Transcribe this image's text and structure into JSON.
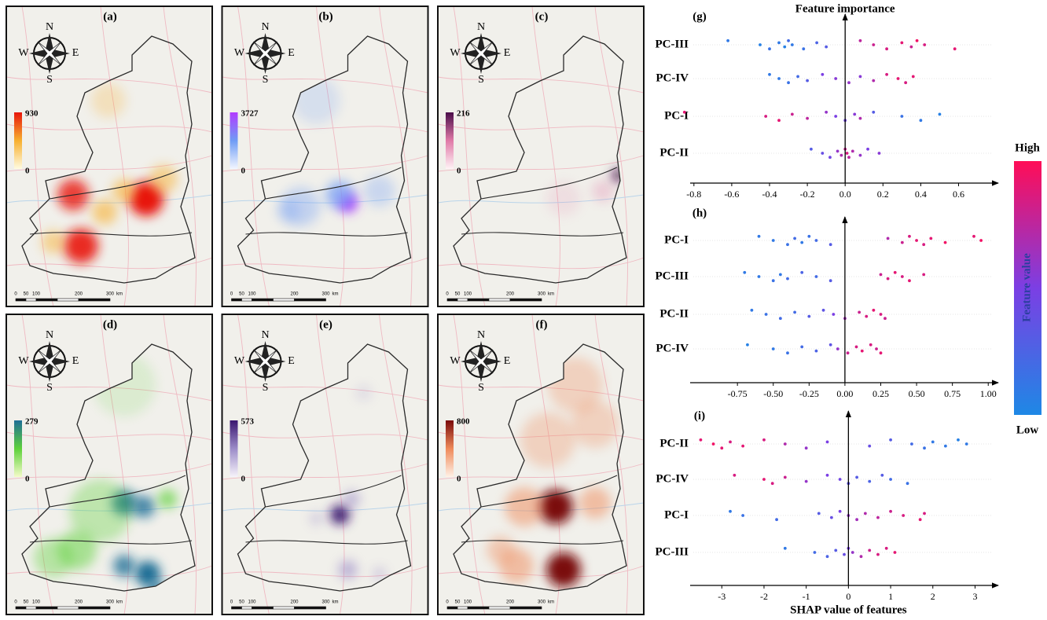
{
  "maps": [
    {
      "label": "(a)",
      "legend_max": 930,
      "legend_min": 0,
      "colors": [
        "#fffbe0",
        "#f7b030",
        "#e8150a"
      ]
    },
    {
      "label": "(b)",
      "legend_max": 3727,
      "legend_min": 0,
      "colors": [
        "#f2f6ff",
        "#6f9cf5",
        "#b23cff"
      ]
    },
    {
      "label": "(c)",
      "legend_max": 216,
      "legend_min": 0,
      "colors": [
        "#fff3f6",
        "#e07aa8",
        "#4a0d4a"
      ]
    },
    {
      "label": "(d)",
      "legend_max": 279,
      "legend_min": 0,
      "colors": [
        "#f4fbc8",
        "#5ed13a",
        "#1e6e96"
      ]
    },
    {
      "label": "(e)",
      "legend_max": 573,
      "legend_min": 0,
      "colors": [
        "#f6f3fa",
        "#9c8cc8",
        "#3a1670"
      ]
    },
    {
      "label": "(f)",
      "legend_max": 800,
      "legend_min": 0,
      "colors": [
        "#fff1e6",
        "#ef8a5a",
        "#7a0a0a"
      ]
    }
  ],
  "compass": {
    "n": "N",
    "e": "E",
    "s": "S",
    "w": "W"
  },
  "scale_labels": [
    "0",
    "50",
    "100",
    "200",
    "300",
    "km"
  ],
  "colorbar": {
    "high": "High",
    "low": "Low",
    "label": "Feature value",
    "colors": [
      "#ff0d57",
      "#7b3fe4",
      "#1e88e5"
    ]
  },
  "chart_data": [
    {
      "type": "beeswarm",
      "label": "(g)",
      "title": "Feature importance",
      "xlim": [
        -0.82,
        0.81
      ],
      "xticks": [
        -0.8,
        -0.6,
        -0.4,
        -0.2,
        {
          "value": 0,
          "label": "0.0"
        },
        0.2,
        0.4,
        0.6
      ],
      "series": [
        {
          "name": "PC-III",
          "values": [
            -0.62,
            -0.45,
            -0.4,
            -0.35,
            -0.32,
            -0.3,
            -0.28,
            -0.22,
            -0.15,
            -0.1,
            0.08,
            0.15,
            0.22,
            0.3,
            0.35,
            0.38,
            0.42,
            0.58
          ],
          "feature_values": [
            0.1,
            0.05,
            0.15,
            0.1,
            0.05,
            0.2,
            0.1,
            0.15,
            0.25,
            0.3,
            0.75,
            0.8,
            0.85,
            0.9,
            0.8,
            0.95,
            0.85,
            0.9
          ]
        },
        {
          "name": "PC-IV",
          "values": [
            -0.4,
            -0.35,
            -0.3,
            -0.25,
            -0.2,
            -0.12,
            -0.05,
            0.02,
            0.08,
            0.15,
            0.22,
            0.28,
            0.32,
            0.36
          ],
          "feature_values": [
            0.1,
            0.1,
            0.15,
            0.2,
            0.3,
            0.5,
            0.55,
            0.6,
            0.55,
            0.7,
            0.85,
            0.9,
            0.85,
            0.9
          ]
        },
        {
          "name": "PC-I",
          "values": [
            -0.85,
            -0.42,
            -0.35,
            -0.28,
            -0.2,
            -0.1,
            -0.05,
            0.0,
            0.05,
            0.08,
            0.15,
            0.3,
            0.4,
            0.5
          ],
          "feature_values": [
            0.9,
            0.85,
            0.9,
            0.8,
            0.75,
            0.6,
            0.5,
            0.45,
            0.55,
            0.7,
            0.3,
            0.15,
            0.1,
            0.05
          ]
        },
        {
          "name": "PC-II",
          "values": [
            -0.18,
            -0.12,
            -0.08,
            -0.04,
            -0.02,
            0,
            0.01,
            0.02,
            0.04,
            0.08,
            0.12,
            0.18
          ],
          "feature_values": [
            0.3,
            0.4,
            0.45,
            0.6,
            0.7,
            0.8,
            0.85,
            0.75,
            0.7,
            0.6,
            0.5,
            0.55
          ]
        }
      ]
    },
    {
      "type": "beeswarm",
      "label": "(h)",
      "xlim": [
        -1.08,
        1.07
      ],
      "xticks": [
        -0.75,
        {
          "value": -0.5,
          "label": "-0.50"
        },
        -0.25,
        {
          "value": 0,
          "label": "0.00"
        },
        0.25,
        {
          "value": 0.5,
          "label": "0.50"
        },
        0.75,
        {
          "value": 1,
          "label": "1.00"
        }
      ],
      "series": [
        {
          "name": "PC-I",
          "values": [
            -0.6,
            -0.5,
            -0.4,
            -0.35,
            -0.3,
            -0.25,
            -0.2,
            -0.1,
            0.3,
            0.4,
            0.45,
            0.5,
            0.55,
            0.6,
            0.7,
            0.9,
            0.95
          ],
          "feature_values": [
            0.1,
            0.1,
            0.15,
            0.2,
            0.1,
            0.15,
            0.2,
            0.3,
            0.7,
            0.8,
            0.85,
            0.9,
            0.85,
            0.9,
            0.95,
            0.9,
            0.95
          ]
        },
        {
          "name": "PC-III",
          "values": [
            -0.7,
            -0.6,
            -0.5,
            -0.45,
            -0.4,
            -0.3,
            -0.2,
            -0.1,
            0.25,
            0.3,
            0.35,
            0.4,
            0.45,
            0.55
          ],
          "feature_values": [
            0.1,
            0.1,
            0.15,
            0.1,
            0.2,
            0.25,
            0.2,
            0.3,
            0.8,
            0.85,
            0.9,
            0.85,
            0.9,
            0.85
          ]
        },
        {
          "name": "PC-II",
          "values": [
            -0.65,
            -0.55,
            -0.45,
            -0.35,
            -0.25,
            -0.15,
            -0.08,
            0,
            0.1,
            0.15,
            0.2,
            0.25,
            0.28
          ],
          "feature_values": [
            0.1,
            0.15,
            0.2,
            0.2,
            0.3,
            0.35,
            0.5,
            0.65,
            0.8,
            0.85,
            0.9,
            0.85,
            0.8
          ]
        },
        {
          "name": "PC-IV",
          "values": [
            -0.68,
            -0.5,
            -0.4,
            -0.3,
            -0.2,
            -0.1,
            -0.05,
            0.02,
            0.08,
            0.12,
            0.18,
            0.22,
            0.25
          ],
          "feature_values": [
            0.05,
            0.1,
            0.15,
            0.2,
            0.25,
            0.35,
            0.6,
            0.8,
            0.85,
            0.9,
            0.85,
            0.8,
            0.9
          ]
        }
      ]
    },
    {
      "type": "beeswarm",
      "label": "(i)",
      "x_label": "SHAP value of features",
      "xlim": [
        -3.75,
        3.55
      ],
      "xticks": [
        -3,
        -2,
        -1,
        0,
        1,
        2,
        3
      ],
      "series": [
        {
          "name": "PC-II",
          "values": [
            -3.5,
            -3.2,
            -3,
            -2.8,
            -2.5,
            -2,
            -1.5,
            -1,
            -0.5,
            0.5,
            1,
            1.5,
            1.8,
            2,
            2.3,
            2.6,
            2.8
          ],
          "feature_values": [
            0.9,
            0.95,
            0.9,
            0.85,
            0.9,
            0.85,
            0.7,
            0.6,
            0.5,
            0.4,
            0.3,
            0.2,
            0.15,
            0.1,
            0.1,
            0.05,
            0.1
          ]
        },
        {
          "name": "PC-IV",
          "values": [
            -2.7,
            -2,
            -1.8,
            -1.5,
            -1,
            -0.5,
            -0.2,
            0,
            0.2,
            0.5,
            0.8,
            1,
            1.4
          ],
          "feature_values": [
            0.85,
            0.9,
            0.85,
            0.8,
            0.6,
            0.5,
            0.45,
            0.35,
            0.3,
            0.25,
            0.3,
            0.2,
            0.15
          ]
        },
        {
          "name": "PC-I",
          "values": [
            -2.8,
            -2.5,
            -1.7,
            -0.7,
            -0.4,
            -0.2,
            0,
            0.2,
            0.4,
            0.7,
            1,
            1.3,
            1.7,
            1.8
          ],
          "feature_values": [
            0.1,
            0.15,
            0.2,
            0.3,
            0.4,
            0.5,
            0.6,
            0.65,
            0.7,
            0.75,
            0.8,
            0.85,
            0.9,
            0.85
          ]
        },
        {
          "name": "PC-III",
          "values": [
            -1.5,
            -0.8,
            -0.5,
            -0.3,
            -0.1,
            0,
            0.1,
            0.3,
            0.5,
            0.7,
            0.9,
            1.1
          ],
          "feature_values": [
            0.1,
            0.2,
            0.25,
            0.3,
            0.4,
            0.5,
            0.6,
            0.7,
            0.8,
            0.85,
            0.85,
            0.9
          ]
        }
      ]
    }
  ]
}
